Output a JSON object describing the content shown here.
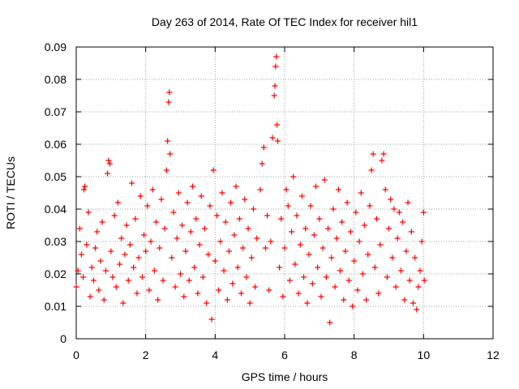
{
  "chart_data": {
    "type": "scatter",
    "title": "Day 263 of 2014, Rate Of TEC Index for receiver hil1",
    "xlabel": "GPS time / hours",
    "ylabel": "ROTI / TECUs",
    "xlim": [
      0,
      12
    ],
    "ylim": [
      0,
      0.09
    ],
    "x_ticks": [
      0,
      2,
      4,
      6,
      8,
      10,
      12
    ],
    "y_ticks": [
      0,
      0.01,
      0.02,
      0.03,
      0.04,
      0.05,
      0.06,
      0.07,
      0.08,
      0.09
    ],
    "x_tick_labels": [
      "0",
      "2",
      "4",
      "6",
      "8",
      "10",
      "12"
    ],
    "y_tick_labels": [
      "0",
      "0.01",
      "0.02",
      "0.03",
      "0.04",
      "0.05",
      "0.06",
      "0.07",
      "0.08",
      "0.09"
    ],
    "grid": true,
    "marker": "+",
    "color": "#ff0000",
    "series": [
      {
        "name": "ROTI",
        "points": [
          [
            0.0,
            0.016
          ],
          [
            0.05,
            0.021
          ],
          [
            0.1,
            0.034
          ],
          [
            0.15,
            0.026
          ],
          [
            0.2,
            0.019
          ],
          [
            0.22,
            0.046
          ],
          [
            0.25,
            0.047
          ],
          [
            0.3,
            0.029
          ],
          [
            0.35,
            0.039
          ],
          [
            0.4,
            0.013
          ],
          [
            0.45,
            0.022
          ],
          [
            0.5,
            0.018
          ],
          [
            0.55,
            0.028
          ],
          [
            0.6,
            0.033
          ],
          [
            0.65,
            0.015
          ],
          [
            0.7,
            0.024
          ],
          [
            0.75,
            0.036
          ],
          [
            0.8,
            0.012
          ],
          [
            0.85,
            0.021
          ],
          [
            0.9,
            0.051
          ],
          [
            0.93,
            0.055
          ],
          [
            0.97,
            0.054
          ],
          [
            1.0,
            0.027
          ],
          [
            1.05,
            0.019
          ],
          [
            1.1,
            0.038
          ],
          [
            1.15,
            0.016
          ],
          [
            1.2,
            0.042
          ],
          [
            1.25,
            0.023
          ],
          [
            1.3,
            0.031
          ],
          [
            1.35,
            0.011
          ],
          [
            1.4,
            0.026
          ],
          [
            1.45,
            0.035
          ],
          [
            1.5,
            0.018
          ],
          [
            1.55,
            0.029
          ],
          [
            1.6,
            0.048
          ],
          [
            1.65,
            0.022
          ],
          [
            1.7,
            0.037
          ],
          [
            1.75,
            0.014
          ],
          [
            1.8,
            0.025
          ],
          [
            1.85,
            0.044
          ],
          [
            1.9,
            0.019
          ],
          [
            1.95,
            0.032
          ],
          [
            2.0,
            0.027
          ],
          [
            2.05,
            0.041
          ],
          [
            2.1,
            0.015
          ],
          [
            2.15,
            0.03
          ],
          [
            2.2,
            0.046
          ],
          [
            2.25,
            0.021
          ],
          [
            2.3,
            0.036
          ],
          [
            2.35,
            0.012
          ],
          [
            2.4,
            0.028
          ],
          [
            2.45,
            0.043
          ],
          [
            2.5,
            0.018
          ],
          [
            2.55,
            0.034
          ],
          [
            2.6,
            0.052
          ],
          [
            2.63,
            0.061
          ],
          [
            2.66,
            0.073
          ],
          [
            2.68,
            0.076
          ],
          [
            2.7,
            0.057
          ],
          [
            2.75,
            0.025
          ],
          [
            2.8,
            0.039
          ],
          [
            2.85,
            0.016
          ],
          [
            2.9,
            0.031
          ],
          [
            2.95,
            0.045
          ],
          [
            3.0,
            0.02
          ],
          [
            3.05,
            0.035
          ],
          [
            3.1,
            0.013
          ],
          [
            3.15,
            0.027
          ],
          [
            3.2,
            0.042
          ],
          [
            3.25,
            0.018
          ],
          [
            3.3,
            0.033
          ],
          [
            3.35,
            0.047
          ],
          [
            3.4,
            0.022
          ],
          [
            3.45,
            0.037
          ],
          [
            3.5,
            0.014
          ],
          [
            3.55,
            0.029
          ],
          [
            3.6,
            0.044
          ],
          [
            3.65,
            0.019
          ],
          [
            3.7,
            0.034
          ],
          [
            3.75,
            0.011
          ],
          [
            3.8,
            0.026
          ],
          [
            3.85,
            0.041
          ],
          [
            3.9,
            0.006
          ],
          [
            3.95,
            0.052
          ],
          [
            4.0,
            0.024
          ],
          [
            4.05,
            0.038
          ],
          [
            4.1,
            0.015
          ],
          [
            4.15,
            0.03
          ],
          [
            4.2,
            0.045
          ],
          [
            4.25,
            0.021
          ],
          [
            4.3,
            0.036
          ],
          [
            4.35,
            0.012
          ],
          [
            4.4,
            0.027
          ],
          [
            4.45,
            0.042
          ],
          [
            4.5,
            0.017
          ],
          [
            4.55,
            0.032
          ],
          [
            4.6,
            0.047
          ],
          [
            4.65,
            0.022
          ],
          [
            4.7,
            0.037
          ],
          [
            4.75,
            0.014
          ],
          [
            4.8,
            0.028
          ],
          [
            4.85,
            0.043
          ],
          [
            4.9,
            0.019
          ],
          [
            4.95,
            0.034
          ],
          [
            5.0,
            0.011
          ],
          [
            5.05,
            0.025
          ],
          [
            5.1,
            0.04
          ],
          [
            5.15,
            0.016
          ],
          [
            5.2,
            0.031
          ],
          [
            5.3,
            0.046
          ],
          [
            5.35,
            0.054
          ],
          [
            5.4,
            0.059
          ],
          [
            5.45,
            0.028
          ],
          [
            5.5,
            0.038
          ],
          [
            5.55,
            0.015
          ],
          [
            5.6,
            0.03
          ],
          [
            5.65,
            0.062
          ],
          [
            5.7,
            0.075
          ],
          [
            5.72,
            0.078
          ],
          [
            5.74,
            0.084
          ],
          [
            5.76,
            0.087
          ],
          [
            5.78,
            0.066
          ],
          [
            5.8,
            0.061
          ],
          [
            5.85,
            0.022
          ],
          [
            5.9,
            0.037
          ],
          [
            5.95,
            0.013
          ],
          [
            6.0,
            0.028
          ],
          [
            6.05,
            0.046
          ],
          [
            6.1,
            0.041
          ],
          [
            6.15,
            0.018
          ],
          [
            6.2,
            0.033
          ],
          [
            6.25,
            0.05
          ],
          [
            6.3,
            0.023
          ],
          [
            6.35,
            0.038
          ],
          [
            6.4,
            0.014
          ],
          [
            6.45,
            0.029
          ],
          [
            6.5,
            0.044
          ],
          [
            6.55,
            0.019
          ],
          [
            6.6,
            0.034
          ],
          [
            6.65,
            0.011
          ],
          [
            6.7,
            0.026
          ],
          [
            6.75,
            0.041
          ],
          [
            6.8,
            0.017
          ],
          [
            6.85,
            0.032
          ],
          [
            6.9,
            0.047
          ],
          [
            6.95,
            0.022
          ],
          [
            7.0,
            0.037
          ],
          [
            7.05,
            0.013
          ],
          [
            7.1,
            0.028
          ],
          [
            7.15,
            0.049
          ],
          [
            7.2,
            0.019
          ],
          [
            7.25,
            0.034
          ],
          [
            7.3,
            0.005
          ],
          [
            7.35,
            0.025
          ],
          [
            7.4,
            0.04
          ],
          [
            7.45,
            0.016
          ],
          [
            7.5,
            0.031
          ],
          [
            7.55,
            0.046
          ],
          [
            7.6,
            0.021
          ],
          [
            7.65,
            0.036
          ],
          [
            7.7,
            0.012
          ],
          [
            7.75,
            0.027
          ],
          [
            7.8,
            0.042
          ],
          [
            7.85,
            0.018
          ],
          [
            7.9,
            0.033
          ],
          [
            7.95,
            0.01
          ],
          [
            8.0,
            0.024
          ],
          [
            8.05,
            0.039
          ],
          [
            8.1,
            0.015
          ],
          [
            8.15,
            0.03
          ],
          [
            8.2,
            0.045
          ],
          [
            8.25,
            0.02
          ],
          [
            8.3,
            0.035
          ],
          [
            8.35,
            0.012
          ],
          [
            8.4,
            0.026
          ],
          [
            8.45,
            0.041
          ],
          [
            8.5,
            0.052
          ],
          [
            8.55,
            0.057
          ],
          [
            8.6,
            0.022
          ],
          [
            8.65,
            0.037
          ],
          [
            8.7,
            0.014
          ],
          [
            8.75,
            0.029
          ],
          [
            8.8,
            0.055
          ],
          [
            8.85,
            0.057
          ],
          [
            8.9,
            0.046
          ],
          [
            8.95,
            0.019
          ],
          [
            9.0,
            0.034
          ],
          [
            9.05,
            0.043
          ],
          [
            9.1,
            0.025
          ],
          [
            9.15,
            0.04
          ],
          [
            9.2,
            0.016
          ],
          [
            9.25,
            0.031
          ],
          [
            9.3,
            0.039
          ],
          [
            9.35,
            0.021
          ],
          [
            9.4,
            0.036
          ],
          [
            9.45,
            0.012
          ],
          [
            9.5,
            0.027
          ],
          [
            9.55,
            0.042
          ],
          [
            9.6,
            0.018
          ],
          [
            9.65,
            0.033
          ],
          [
            9.7,
            0.011
          ],
          [
            9.75,
            0.025
          ],
          [
            9.8,
            0.009
          ],
          [
            9.85,
            0.016
          ],
          [
            9.9,
            0.021
          ],
          [
            9.95,
            0.03
          ],
          [
            10.0,
            0.039
          ],
          [
            10.02,
            0.018
          ]
        ]
      }
    ]
  }
}
